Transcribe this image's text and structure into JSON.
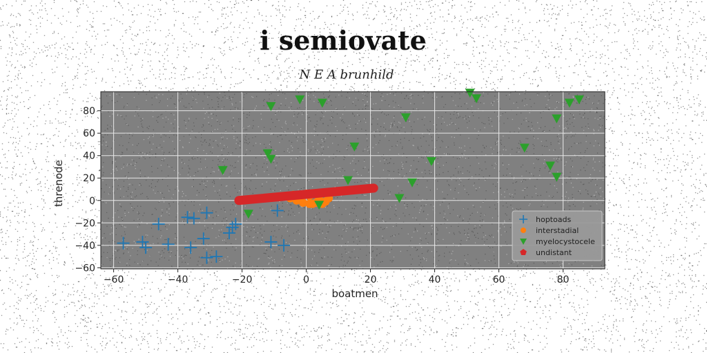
{
  "chart_data": {
    "type": "scatter",
    "title": "i semiovate",
    "subtitle": "N E A brunhild",
    "xlabel": "boatmen",
    "ylabel": "threnode",
    "xlim": [
      -64,
      93
    ],
    "ylim": [
      -61,
      97
    ],
    "xticks": [
      -60,
      -40,
      -20,
      0,
      20,
      40,
      60,
      80
    ],
    "yticks": [
      -60,
      -40,
      -20,
      0,
      20,
      40,
      60,
      80
    ],
    "grid": true,
    "legend_position": "lower-right",
    "series": [
      {
        "name": "hoptoads",
        "marker": "plus",
        "color": "#1f77b4",
        "points": [
          [
            -57,
            -38
          ],
          [
            -51,
            -37
          ],
          [
            -50,
            -42
          ],
          [
            -46,
            -21
          ],
          [
            -43,
            -39
          ],
          [
            -37,
            -15
          ],
          [
            -36,
            -42
          ],
          [
            -35,
            -16
          ],
          [
            -32,
            -34
          ],
          [
            -31,
            -11
          ],
          [
            -31,
            -51
          ],
          [
            -28,
            -50
          ],
          [
            -24,
            -29
          ],
          [
            -23,
            -24
          ],
          [
            -22,
            -21
          ],
          [
            -11,
            -37
          ],
          [
            -9,
            -9
          ],
          [
            -7,
            -40
          ]
        ]
      },
      {
        "name": "interstadial",
        "marker": "circle",
        "color": "#ff7f0e",
        "points": [
          [
            -4,
            5
          ],
          [
            -2,
            3
          ],
          [
            0,
            6
          ],
          [
            1,
            4
          ],
          [
            -3,
            0
          ],
          [
            -1,
            -2
          ],
          [
            2,
            -3
          ],
          [
            4,
            1
          ],
          [
            6,
            -1
          ],
          [
            7,
            2
          ],
          [
            -5,
            2
          ],
          [
            3,
            -2
          ],
          [
            5,
            -3
          ],
          [
            1,
            -3
          ]
        ]
      },
      {
        "name": "myelocystocele",
        "marker": "triangle-down",
        "color": "#2ca02c",
        "points": [
          [
            -26,
            27
          ],
          [
            -18,
            -12
          ],
          [
            -12,
            42
          ],
          [
            -11,
            37
          ],
          [
            -11,
            84
          ],
          [
            -2,
            90
          ],
          [
            4,
            -4
          ],
          [
            5,
            87
          ],
          [
            13,
            18
          ],
          [
            15,
            48
          ],
          [
            29,
            2
          ],
          [
            31,
            74
          ],
          [
            33,
            16
          ],
          [
            39,
            35
          ],
          [
            51,
            96
          ],
          [
            53,
            91
          ],
          [
            68,
            47
          ],
          [
            76,
            31
          ],
          [
            78,
            21
          ],
          [
            78,
            73
          ],
          [
            82,
            87
          ],
          [
            85,
            90
          ]
        ]
      },
      {
        "name": "undistant",
        "marker": "pentagon",
        "color": "#d62728",
        "line_from": [
          -21,
          0
        ],
        "line_to": [
          21,
          11
        ]
      }
    ]
  }
}
